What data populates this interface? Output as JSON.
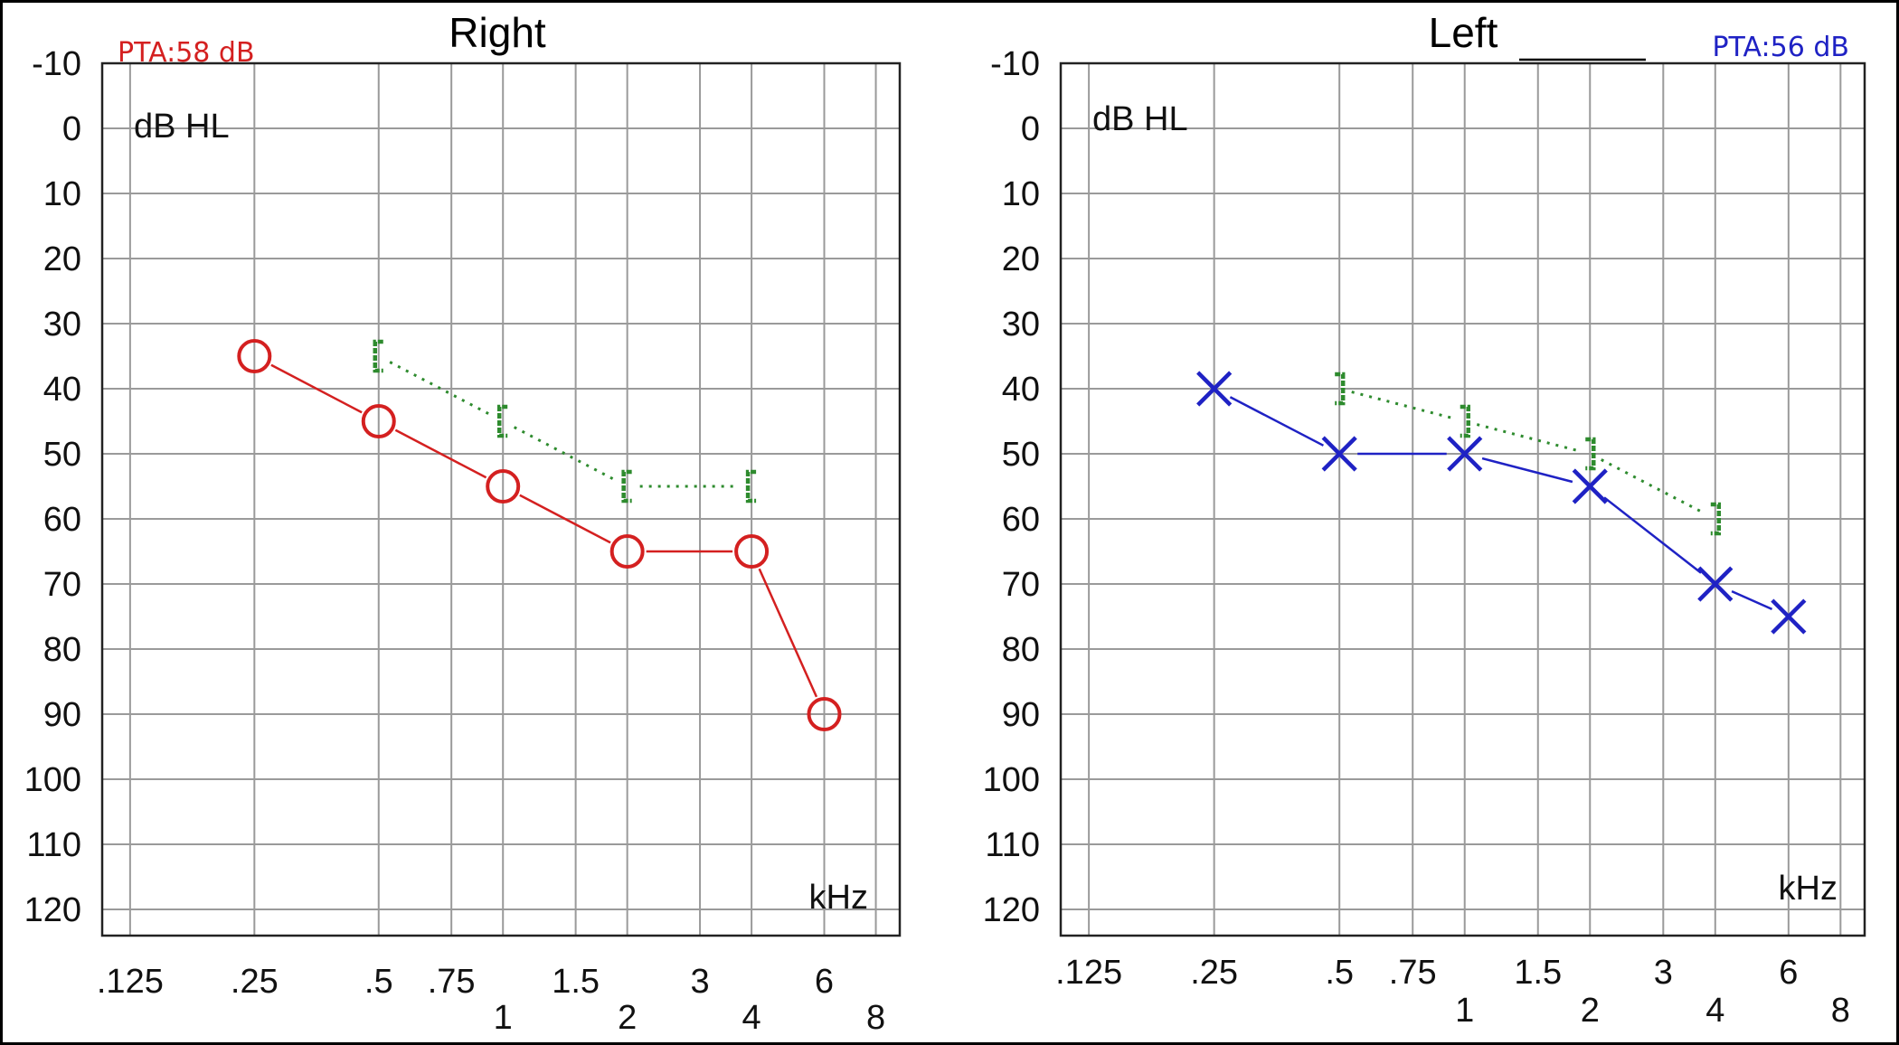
{
  "chart_data": [
    {
      "type": "line",
      "title": "Right",
      "pta_label": "PTA:58 dB",
      "ylabel": "dB HL",
      "xlabel": "kHz",
      "ylim": [
        -10,
        120
      ],
      "y_reversed": true,
      "y_ticks": [
        "-10",
        "0",
        "10",
        "20",
        "30",
        "40",
        "50",
        "60",
        "70",
        "80",
        "90",
        "100",
        "110",
        "120"
      ],
      "x_ticks": [
        {
          "label": ".125",
          "freq": 0.125,
          "row": "upper"
        },
        {
          "label": ".25",
          "freq": 0.25,
          "row": "upper"
        },
        {
          "label": ".5",
          "freq": 0.5,
          "row": "upper"
        },
        {
          "label": ".75",
          "freq": 0.75,
          "row": "upper"
        },
        {
          "label": "1",
          "freq": 1,
          "row": "lower"
        },
        {
          "label": "1.5",
          "freq": 1.5,
          "row": "upper"
        },
        {
          "label": "2",
          "freq": 2,
          "row": "lower"
        },
        {
          "label": "3",
          "freq": 3,
          "row": "upper"
        },
        {
          "label": "4",
          "freq": 4,
          "row": "lower"
        },
        {
          "label": "6",
          "freq": 6,
          "row": "upper"
        },
        {
          "label": "8",
          "freq": 8,
          "row": "lower"
        }
      ],
      "grid": true,
      "series": [
        {
          "kind": "air_conduction",
          "marker": "circle",
          "color": "#d42020",
          "line": "solid",
          "points": [
            {
              "x": 0.25,
              "y": 35
            },
            {
              "x": 0.5,
              "y": 45
            },
            {
              "x": 1,
              "y": 55
            },
            {
              "x": 2,
              "y": 65
            },
            {
              "x": 4,
              "y": 65
            },
            {
              "x": 6,
              "y": 90
            }
          ]
        },
        {
          "kind": "bone_conduction_masked",
          "marker": "bracket-left",
          "color": "#2e8b2e",
          "line": "dotted",
          "points": [
            {
              "x": 0.5,
              "y": 35
            },
            {
              "x": 1,
              "y": 45
            },
            {
              "x": 2,
              "y": 55
            },
            {
              "x": 4,
              "y": 55
            }
          ]
        }
      ]
    },
    {
      "type": "line",
      "title": "Left",
      "pta_label": "PTA:56 dB",
      "ylabel": "dB HL",
      "xlabel": "kHz",
      "ylim": [
        -10,
        120
      ],
      "y_reversed": true,
      "y_ticks": [
        "-10",
        "0",
        "10",
        "20",
        "30",
        "40",
        "50",
        "60",
        "70",
        "80",
        "90",
        "100",
        "110",
        "120"
      ],
      "x_ticks": [
        {
          "label": ".125",
          "freq": 0.125,
          "row": "upper"
        },
        {
          "label": ".25",
          "freq": 0.25,
          "row": "upper"
        },
        {
          "label": ".5",
          "freq": 0.5,
          "row": "upper"
        },
        {
          "label": ".75",
          "freq": 0.75,
          "row": "upper"
        },
        {
          "label": "1",
          "freq": 1,
          "row": "lower"
        },
        {
          "label": "1.5",
          "freq": 1.5,
          "row": "upper"
        },
        {
          "label": "2",
          "freq": 2,
          "row": "lower"
        },
        {
          "label": "3",
          "freq": 3,
          "row": "upper"
        },
        {
          "label": "4",
          "freq": 4,
          "row": "lower"
        },
        {
          "label": "6",
          "freq": 6,
          "row": "upper"
        },
        {
          "label": "8",
          "freq": 8,
          "row": "lower"
        }
      ],
      "grid": true,
      "series": [
        {
          "kind": "air_conduction",
          "marker": "cross",
          "color": "#1f22c4",
          "line": "solid",
          "points": [
            {
              "x": 0.25,
              "y": 40
            },
            {
              "x": 0.5,
              "y": 50
            },
            {
              "x": 1,
              "y": 50
            },
            {
              "x": 2,
              "y": 55
            },
            {
              "x": 4,
              "y": 70
            },
            {
              "x": 6,
              "y": 75
            }
          ]
        },
        {
          "kind": "bone_conduction_masked",
          "marker": "bracket-right",
          "color": "#2e8b2e",
          "line": "dotted",
          "points": [
            {
              "x": 0.5,
              "y": 40
            },
            {
              "x": 1,
              "y": 45
            },
            {
              "x": 2,
              "y": 50
            },
            {
              "x": 4,
              "y": 60
            }
          ]
        }
      ]
    }
  ]
}
